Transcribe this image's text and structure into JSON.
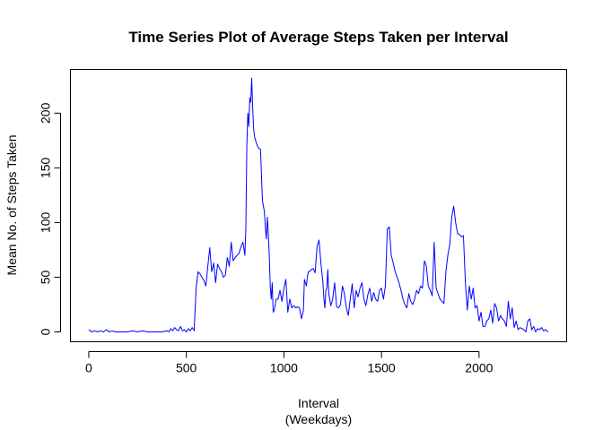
{
  "chart_data": {
    "type": "line",
    "title": "Time Series Plot of Average Steps Taken per Interval",
    "xlabel": "Interval",
    "xlabel_sub": "(Weekdays)",
    "ylabel": "Mean No. of Steps Taken",
    "xlim": [
      -94,
      2449
    ],
    "ylim": [
      -9,
      240
    ],
    "xticks": [
      0,
      500,
      1000,
      1500,
      2000
    ],
    "yticks": [
      0,
      50,
      100,
      150,
      200
    ],
    "grid": false,
    "legend": "none",
    "color": "#0000ff",
    "series": [
      {
        "x": [
          0,
          15,
          30,
          45,
          60,
          75,
          90,
          105,
          120,
          135,
          150,
          175,
          200,
          225,
          250,
          275,
          300,
          325,
          350,
          375,
          400,
          410,
          420,
          430,
          440,
          450,
          460,
          470,
          480,
          490,
          500,
          510,
          520,
          530,
          540,
          550,
          560,
          570,
          580,
          590,
          600,
          610,
          620,
          630,
          640,
          650,
          660,
          670,
          680,
          690,
          700,
          710,
          720,
          730,
          740,
          750,
          760,
          770,
          780,
          790,
          800,
          805,
          810,
          815,
          820,
          825,
          830,
          835,
          840,
          845,
          850,
          855,
          860,
          870,
          880,
          890,
          900,
          905,
          910,
          915,
          920,
          925,
          930,
          935,
          940,
          945,
          950,
          955,
          960,
          970,
          980,
          990,
          1000,
          1010,
          1020,
          1030,
          1040,
          1050,
          1060,
          1070,
          1080,
          1090,
          1100,
          1105,
          1110,
          1115,
          1120,
          1125,
          1130,
          1140,
          1150,
          1160,
          1170,
          1180,
          1190,
          1200,
          1205,
          1210,
          1215,
          1220,
          1225,
          1230,
          1240,
          1250,
          1260,
          1270,
          1280,
          1290,
          1300,
          1310,
          1320,
          1330,
          1340,
          1350,
          1360,
          1370,
          1380,
          1390,
          1400,
          1410,
          1420,
          1430,
          1440,
          1450,
          1460,
          1470,
          1480,
          1490,
          1500,
          1510,
          1520,
          1530,
          1540,
          1550,
          1560,
          1570,
          1580,
          1590,
          1600,
          1610,
          1620,
          1630,
          1640,
          1650,
          1660,
          1670,
          1680,
          1690,
          1700,
          1710,
          1720,
          1730,
          1740,
          1750,
          1760,
          1770,
          1780,
          1790,
          1800,
          1810,
          1820,
          1830,
          1840,
          1850,
          1860,
          1870,
          1880,
          1890,
          1900,
          1910,
          1920,
          1930,
          1940,
          1950,
          1960,
          1970,
          1980,
          1990,
          2000,
          2010,
          2020,
          2030,
          2040,
          2050,
          2060,
          2070,
          2080,
          2090,
          2100,
          2110,
          2120,
          2130,
          2140,
          2150,
          2160,
          2170,
          2180,
          2190,
          2200,
          2210,
          2220,
          2230,
          2240,
          2250,
          2260,
          2270,
          2280,
          2290,
          2300,
          2310,
          2320,
          2330,
          2340,
          2355
        ],
        "values": [
          2,
          0,
          1,
          0,
          1,
          0,
          2,
          0,
          1,
          0,
          0,
          0,
          0,
          1,
          0,
          1,
          0,
          0,
          0,
          0,
          1,
          0,
          3,
          1,
          4,
          2,
          1,
          5,
          1,
          2,
          0,
          3,
          1,
          4,
          1,
          40,
          55,
          53,
          50,
          47,
          42,
          60,
          77,
          55,
          63,
          45,
          62,
          58,
          55,
          50,
          52,
          68,
          60,
          82,
          65,
          68,
          70,
          72,
          78,
          82,
          70,
          95,
          170,
          200,
          188,
          214,
          210,
          232,
          205,
          185,
          178,
          175,
          172,
          168,
          167,
          120,
          110,
          95,
          85,
          105,
          90,
          70,
          42,
          30,
          45,
          18,
          20,
          24,
          30,
          30,
          38,
          28,
          40,
          48,
          18,
          30,
          22,
          24,
          22,
          23,
          22,
          12,
          20,
          48,
          45,
          42,
          50,
          55,
          55,
          57,
          58,
          54,
          78,
          84,
          62,
          45,
          30,
          22,
          38,
          40,
          57,
          35,
          24,
          30,
          45,
          23,
          22,
          25,
          42,
          35,
          22,
          15,
          30,
          44,
          22,
          38,
          32,
          40,
          45,
          30,
          24,
          34,
          40,
          28,
          36,
          30,
          28,
          38,
          40,
          30,
          42,
          94,
          96,
          70,
          63,
          55,
          50,
          45,
          38,
          30,
          25,
          22,
          35,
          28,
          25,
          30,
          38,
          35,
          42,
          40,
          65,
          60,
          42,
          38,
          33,
          82,
          40,
          35,
          30,
          28,
          26,
          55,
          70,
          80,
          105,
          115,
          100,
          90,
          89,
          87,
          88,
          45,
          20,
          42,
          30,
          40,
          22,
          24,
          10,
          18,
          5,
          5,
          10,
          12,
          20,
          8,
          26,
          22,
          10,
          15,
          12,
          10,
          5,
          28,
          12,
          22,
          4,
          10,
          2,
          4,
          3,
          2,
          0,
          10,
          12,
          2,
          5,
          0,
          3,
          2,
          4,
          1,
          2,
          0
        ]
      }
    ]
  }
}
